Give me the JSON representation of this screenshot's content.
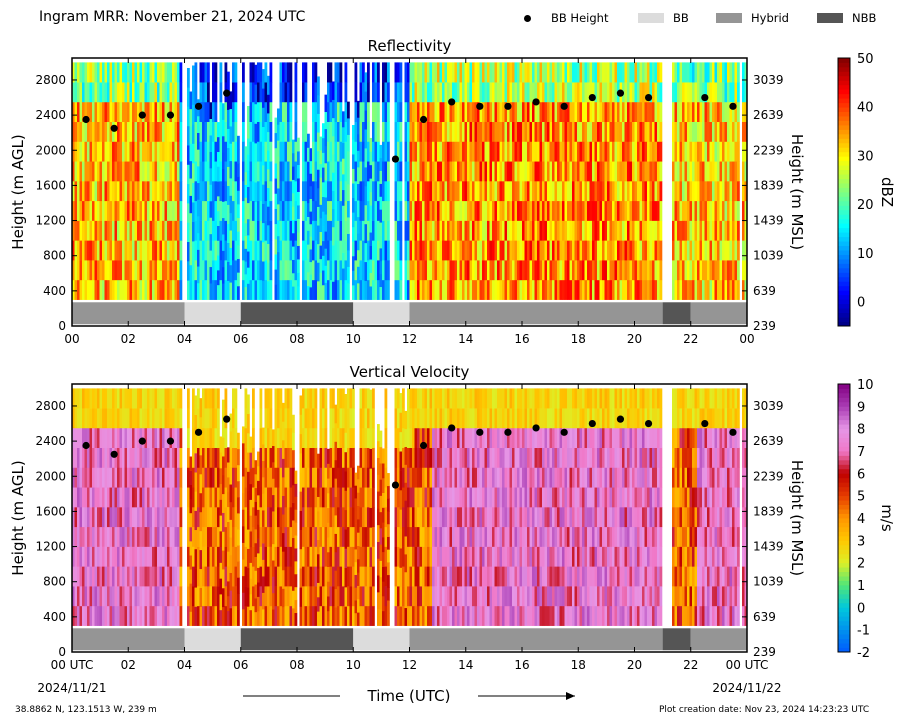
{
  "header": {
    "title": "Ingram MRR:  November 21, 2024 UTC"
  },
  "legend": {
    "items": [
      {
        "label": "BB Height",
        "symbol": "dot",
        "color": "#000000"
      },
      {
        "label": "BB",
        "symbol": "box",
        "color": "#dcdcdc"
      },
      {
        "label": "Hybrid",
        "symbol": "box",
        "color": "#959595"
      },
      {
        "label": "NBB",
        "symbol": "box",
        "color": "#555555"
      }
    ]
  },
  "footer": {
    "location": "38.8862 N, 123.1513 W, 239 m",
    "creation": "Plot creation date: Nov 23, 2024 14:23:23 UTC"
  },
  "xaxis": {
    "label": "Time (UTC)",
    "ticks": [
      0,
      2,
      4,
      6,
      8,
      10,
      12,
      14,
      16,
      18,
      20,
      22,
      24
    ],
    "top_tick_labels": [
      "00",
      "02",
      "04",
      "06",
      "08",
      "10",
      "12",
      "14",
      "16",
      "18",
      "20",
      "22",
      "00"
    ],
    "bottom_tick_labels": [
      "00 UTC",
      "02",
      "04",
      "06",
      "08",
      "10",
      "12",
      "14",
      "16",
      "18",
      "20",
      "22",
      "00 UTC"
    ],
    "start_date": "2024/11/21",
    "end_date": "2024/11/22"
  },
  "chart_data": [
    {
      "type": "heatmap",
      "title": "Reflectivity",
      "xlabel": "",
      "ylabel": "Height (m AGL)",
      "y2label": "Height (m MSL)",
      "xlim": [
        0,
        24
      ],
      "ylim": [
        0,
        3050
      ],
      "yticks": [
        0,
        400,
        800,
        1200,
        1600,
        2000,
        2400,
        2800
      ],
      "y2ticks": [
        239,
        639,
        1039,
        1439,
        1839,
        2239,
        2639,
        3039
      ],
      "colorbar": {
        "label": "dBZ",
        "min": -5,
        "max": 50,
        "ticks": [
          0,
          10,
          20,
          30,
          40,
          50
        ]
      },
      "bb_height": {
        "x": [
          0.5,
          1.5,
          2.5,
          3.5,
          4.5,
          5.5,
          11.5,
          12.5,
          13.5,
          14.5,
          15.5,
          16.5,
          17.5,
          18.5,
          19.5,
          20.5,
          22.5,
          23.5
        ],
        "y": [
          2350,
          2250,
          2400,
          2400,
          2500,
          2650,
          1900,
          2350,
          2550,
          2500,
          2500,
          2550,
          2500,
          2600,
          2650,
          2600,
          2600,
          2500
        ]
      },
      "classification": [
        {
          "start": 0,
          "end": 4,
          "class": "Hybrid"
        },
        {
          "start": 4,
          "end": 6,
          "class": "BB"
        },
        {
          "start": 6,
          "end": 10,
          "class": "NBB"
        },
        {
          "start": 10,
          "end": 12,
          "class": "BB"
        },
        {
          "start": 12,
          "end": 21,
          "class": "Hybrid"
        },
        {
          "start": 21,
          "end": 22,
          "class": "NBB"
        },
        {
          "start": 22,
          "end": 24,
          "class": "Hybrid"
        }
      ]
    },
    {
      "type": "heatmap",
      "title": "Vertical Velocity",
      "xlabel": "Time (UTC)",
      "ylabel": "Height (m AGL)",
      "y2label": "Height (m MSL)",
      "xlim": [
        0,
        24
      ],
      "ylim": [
        0,
        3050
      ],
      "yticks": [
        0,
        400,
        800,
        1200,
        1600,
        2000,
        2400,
        2800
      ],
      "y2ticks": [
        239,
        639,
        1039,
        1439,
        1839,
        2239,
        2639,
        3039
      ],
      "colorbar": {
        "label": "m/s",
        "min": -2,
        "max": 10,
        "ticks": [
          -2,
          -1,
          0,
          1,
          2,
          3,
          4,
          5,
          6,
          7,
          8,
          9,
          10
        ]
      },
      "bb_height": {
        "x": [
          0.5,
          1.5,
          2.5,
          3.5,
          4.5,
          5.5,
          11.5,
          12.5,
          13.5,
          14.5,
          15.5,
          16.5,
          17.5,
          18.5,
          19.5,
          20.5,
          22.5,
          23.5
        ],
        "y": [
          2350,
          2250,
          2400,
          2400,
          2500,
          2650,
          1900,
          2350,
          2550,
          2500,
          2500,
          2550,
          2500,
          2600,
          2650,
          2600,
          2600,
          2500
        ]
      },
      "classification": [
        {
          "start": 0,
          "end": 4,
          "class": "Hybrid"
        },
        {
          "start": 4,
          "end": 6,
          "class": "BB"
        },
        {
          "start": 6,
          "end": 10,
          "class": "NBB"
        },
        {
          "start": 10,
          "end": 12,
          "class": "BB"
        },
        {
          "start": 12,
          "end": 21,
          "class": "Hybrid"
        },
        {
          "start": 21,
          "end": 22,
          "class": "NBB"
        },
        {
          "start": 22,
          "end": 24,
          "class": "Hybrid"
        }
      ]
    }
  ]
}
